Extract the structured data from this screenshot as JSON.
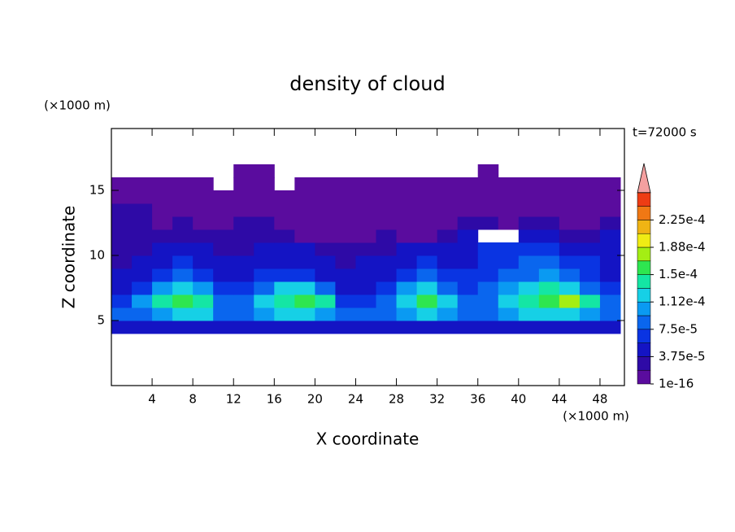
{
  "chart_data": {
    "type": "contour",
    "title": "density of cloud",
    "xlabel": "X coordinate",
    "ylabel": "Z coordinate",
    "x_unit": "(×1000 m)",
    "y_unit": "(×1000 m)",
    "annotation": "t=72000 s",
    "xlim": [
      0,
      50.4
    ],
    "ylim": [
      0,
      19.75
    ],
    "xticks": [
      4,
      8,
      12,
      16,
      20,
      24,
      28,
      32,
      36,
      40,
      44,
      48
    ],
    "yticks": [
      5,
      10,
      15
    ],
    "x": [
      1,
      3,
      5,
      7,
      9,
      11,
      13,
      15,
      17,
      19,
      21,
      23,
      25,
      27,
      29,
      31,
      33,
      35,
      37,
      39,
      41,
      43,
      45,
      47,
      49
    ],
    "y": [
      4.5,
      5.5,
      6.5,
      7.5,
      8.5,
      9.5,
      10.5,
      11.5,
      12.5,
      13.5,
      14.5,
      15.5,
      16.5
    ],
    "z": [
      [
        4e-05,
        4e-05,
        4e-05,
        4e-05,
        4e-05,
        4e-05,
        4e-05,
        4e-05,
        4e-05,
        4e-05,
        4e-05,
        4e-05,
        4e-05,
        4e-05,
        4e-05,
        4e-05,
        4e-05,
        4e-05,
        4e-05,
        4e-05,
        4e-05,
        4e-05,
        4e-05,
        4e-05,
        4e-05
      ],
      [
        8e-05,
        8e-05,
        0.0001,
        0.00012,
        0.00012,
        8e-05,
        8e-05,
        0.0001,
        0.00012,
        0.00012,
        0.0001,
        8e-05,
        8e-05,
        8e-05,
        0.0001,
        0.00012,
        0.0001,
        8e-05,
        8e-05,
        0.0001,
        0.00012,
        0.00012,
        0.00012,
        0.0001,
        8e-05
      ],
      [
        6e-05,
        0.0001,
        0.00014,
        0.00016,
        0.00014,
        8e-05,
        8e-05,
        0.00012,
        0.00014,
        0.00016,
        0.00014,
        6e-05,
        6e-05,
        8e-05,
        0.00012,
        0.00016,
        0.00012,
        8e-05,
        8e-05,
        0.00012,
        0.00014,
        0.00016,
        0.00017,
        0.00014,
        8e-05
      ],
      [
        4e-05,
        6e-05,
        0.0001,
        0.00012,
        0.0001,
        6e-05,
        6e-05,
        8e-05,
        0.00012,
        0.00012,
        8e-05,
        4e-05,
        4e-05,
        6e-05,
        0.0001,
        0.00012,
        8e-05,
        6e-05,
        8e-05,
        0.0001,
        0.00012,
        0.00014,
        0.00012,
        8e-05,
        6e-05
      ],
      [
        4e-05,
        4e-05,
        6e-05,
        8e-05,
        6e-05,
        4e-05,
        4e-05,
        6e-05,
        6e-05,
        6e-05,
        4e-05,
        4e-05,
        4e-05,
        4e-05,
        6e-05,
        8e-05,
        6e-05,
        6e-05,
        6e-05,
        8e-05,
        8e-05,
        0.0001,
        8e-05,
        6e-05,
        4e-05
      ],
      [
        2.5e-05,
        4e-05,
        4e-05,
        6e-05,
        4e-05,
        4e-05,
        4e-05,
        4e-05,
        4e-05,
        4e-05,
        4e-05,
        2.5e-05,
        4e-05,
        4e-05,
        4e-05,
        6e-05,
        4e-05,
        4e-05,
        6e-05,
        6e-05,
        8e-05,
        8e-05,
        6e-05,
        6e-05,
        4e-05
      ],
      [
        2.5e-05,
        2.5e-05,
        4e-05,
        4e-05,
        4e-05,
        2.5e-05,
        2.5e-05,
        4e-05,
        4e-05,
        4e-05,
        2.5e-05,
        2.5e-05,
        2.5e-05,
        2.5e-05,
        4e-05,
        4e-05,
        4e-05,
        4e-05,
        6e-05,
        6e-05,
        6e-05,
        6e-05,
        4e-05,
        4e-05,
        4e-05
      ],
      [
        2.5e-05,
        2.5e-05,
        2.5e-05,
        2.5e-05,
        2.5e-05,
        2.5e-05,
        2.5e-05,
        2.5e-05,
        2.5e-05,
        1e-06,
        1e-06,
        1e-06,
        1e-06,
        2.5e-05,
        1e-06,
        1e-06,
        2.5e-05,
        4e-05,
        null,
        null,
        4e-05,
        4e-05,
        2.5e-05,
        2.5e-05,
        4e-05
      ],
      [
        2.5e-05,
        2.5e-05,
        1e-06,
        2.5e-05,
        1e-06,
        1e-06,
        2.5e-05,
        2.5e-05,
        1e-06,
        1e-06,
        1e-06,
        1e-06,
        1e-06,
        1e-06,
        1e-06,
        1e-06,
        1e-06,
        2.5e-05,
        2.5e-05,
        1e-06,
        2.5e-05,
        2.5e-05,
        1e-06,
        1e-06,
        2.5e-05
      ],
      [
        2.5e-05,
        2.5e-05,
        1e-06,
        1e-06,
        1e-06,
        1e-06,
        1e-06,
        1e-06,
        1e-06,
        1e-06,
        1e-06,
        1e-06,
        1e-06,
        1e-06,
        1e-06,
        1e-06,
        1e-06,
        1e-06,
        1e-06,
        1e-06,
        1e-06,
        1e-06,
        1e-06,
        1e-06,
        1e-06
      ],
      [
        1e-06,
        1e-06,
        1e-06,
        1e-06,
        1e-06,
        1e-06,
        1e-06,
        1e-06,
        1e-06,
        1e-06,
        1e-06,
        1e-06,
        1e-06,
        1e-06,
        1e-06,
        1e-06,
        1e-06,
        1e-06,
        1e-06,
        1e-06,
        1e-06,
        1e-06,
        1e-06,
        1e-06,
        1e-06
      ],
      [
        1e-06,
        1e-06,
        1e-06,
        1e-06,
        1e-06,
        null,
        1e-06,
        1e-06,
        null,
        1e-06,
        1e-06,
        1e-06,
        1e-06,
        1e-06,
        1e-06,
        1e-06,
        1e-06,
        1e-06,
        1e-06,
        1e-06,
        1e-06,
        1e-06,
        1e-06,
        1e-06,
        1e-06
      ],
      [
        null,
        null,
        null,
        null,
        null,
        null,
        1e-06,
        1e-06,
        null,
        null,
        null,
        null,
        null,
        null,
        null,
        null,
        null,
        null,
        1e-06,
        null,
        null,
        null,
        null,
        null,
        null
      ]
    ],
    "levels": [
      1e-16,
      1.875e-05,
      3.75e-05,
      5.625e-05,
      7.5e-05,
      9.375e-05,
      0.0001125,
      0.00013125,
      0.00015,
      0.00016875,
      0.0001875,
      0.00020625,
      0.000225,
      0.00024375
    ],
    "colors": [
      "#5a0c9e",
      "#2e0aa6",
      "#1414c4",
      "#0a34e2",
      "#0a66ee",
      "#0a9af2",
      "#16d0e6",
      "#14e6a4",
      "#2ee650",
      "#a4ee14",
      "#f0ec14",
      "#f0b414",
      "#f07814",
      "#ee3c14"
    ],
    "extend_color": "#f4a0a0",
    "cbar_ticks": [
      {
        "value": 1e-16,
        "label": "1e-16"
      },
      {
        "value": 3.75e-05,
        "label": "3.75e-5"
      },
      {
        "value": 7.5e-05,
        "label": "7.5e-5"
      },
      {
        "value": 0.0001125,
        "label": "1.12e-4"
      },
      {
        "value": 0.00015,
        "label": "1.5e-4"
      },
      {
        "value": 0.0001875,
        "label": "1.88e-4"
      },
      {
        "value": 0.000225,
        "label": "2.25e-4"
      }
    ]
  }
}
